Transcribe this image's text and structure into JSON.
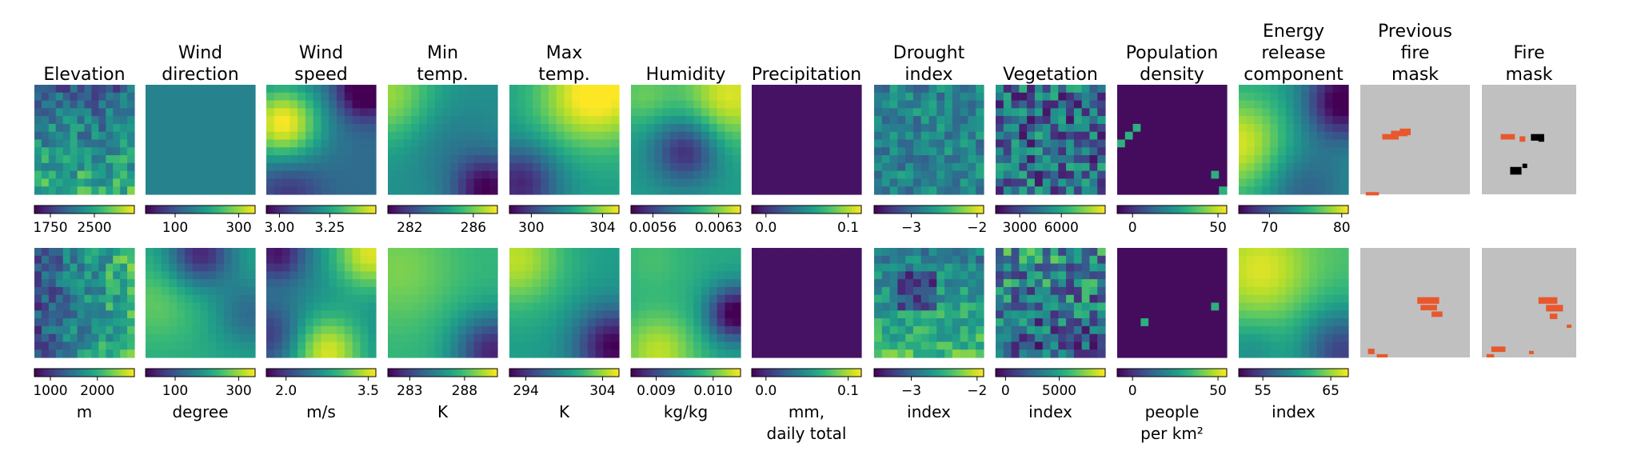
{
  "colors": {
    "viridis_low": "#440154",
    "viridis_mid": "#21918c",
    "viridis_high": "#fde725",
    "mask_background": "#c0c0c0",
    "fire": "#e8582c",
    "no_data": "#000000"
  },
  "columns": [
    {
      "title": [
        "Elevation"
      ],
      "unit": [
        "m"
      ],
      "rows": [
        {
          "ticks": [
            "1750",
            "2500"
          ],
          "palette": "viridis",
          "icon": "terrain-heatmap"
        },
        {
          "ticks": [
            "1000",
            "2000"
          ],
          "palette": "viridis",
          "icon": "terrain-heatmap"
        }
      ]
    },
    {
      "title": [
        "Wind",
        "direction"
      ],
      "unit": [
        "degree"
      ],
      "rows": [
        {
          "ticks": [
            "100",
            "300"
          ],
          "palette": "viridis",
          "icon": "uniform-heatmap"
        },
        {
          "ticks": [
            "100",
            "300"
          ],
          "palette": "viridis",
          "icon": "smooth-heatmap"
        }
      ]
    },
    {
      "title": [
        "Wind",
        "speed"
      ],
      "unit": [
        "m/s"
      ],
      "rows": [
        {
          "ticks": [
            "3.00",
            "3.25"
          ],
          "palette": "viridis",
          "icon": "smooth-heatmap"
        },
        {
          "ticks": [
            "2.0",
            "3.5"
          ],
          "palette": "viridis",
          "icon": "smooth-heatmap"
        }
      ]
    },
    {
      "title": [
        "Min",
        "temp."
      ],
      "unit": [
        "K"
      ],
      "rows": [
        {
          "ticks": [
            "282",
            "286"
          ],
          "palette": "viridis",
          "icon": "smooth-heatmap"
        },
        {
          "ticks": [
            "283",
            "288"
          ],
          "palette": "viridis",
          "icon": "smooth-heatmap"
        }
      ]
    },
    {
      "title": [
        "Max",
        "temp."
      ],
      "unit": [
        "K"
      ],
      "rows": [
        {
          "ticks": [
            "300",
            "304"
          ],
          "palette": "viridis",
          "icon": "smooth-heatmap"
        },
        {
          "ticks": [
            "294",
            "304"
          ],
          "palette": "viridis",
          "icon": "smooth-heatmap"
        }
      ]
    },
    {
      "title": [
        "Humidity"
      ],
      "unit": [
        "kg/kg"
      ],
      "rows": [
        {
          "ticks": [
            "0.0056",
            "0.0063"
          ],
          "palette": "viridis",
          "icon": "smooth-heatmap"
        },
        {
          "ticks": [
            "0.009",
            "0.010"
          ],
          "palette": "viridis",
          "icon": "smooth-heatmap"
        }
      ]
    },
    {
      "title": [
        "Precipitation"
      ],
      "unit": [
        "mm,",
        "daily total"
      ],
      "rows": [
        {
          "ticks": [
            "0.0",
            "0.1"
          ],
          "palette": "viridis",
          "icon": "uniform-heatmap"
        },
        {
          "ticks": [
            "0.0",
            "0.1"
          ],
          "palette": "viridis",
          "icon": "uniform-heatmap"
        }
      ]
    },
    {
      "title": [
        "Drought",
        "index"
      ],
      "unit": [
        "index"
      ],
      "rows": [
        {
          "ticks": [
            "−3",
            "−2"
          ],
          "palette": "viridis",
          "icon": "patchy-heatmap"
        },
        {
          "ticks": [
            "−3",
            "−2"
          ],
          "palette": "viridis",
          "icon": "patchy-heatmap"
        }
      ]
    },
    {
      "title": [
        "Vegetation"
      ],
      "unit": [
        "index"
      ],
      "rows": [
        {
          "ticks": [
            "3000",
            "6000"
          ],
          "palette": "viridis",
          "icon": "noisy-heatmap"
        },
        {
          "ticks": [
            "0",
            "5000"
          ],
          "palette": "viridis",
          "icon": "noisy-heatmap"
        }
      ]
    },
    {
      "title": [
        "Population",
        "density"
      ],
      "unit": [
        "people",
        "per km²"
      ],
      "rows": [
        {
          "ticks": [
            "0",
            "50"
          ],
          "palette": "viridis",
          "icon": "sparse-heatmap"
        },
        {
          "ticks": [
            "0",
            "50"
          ],
          "palette": "viridis",
          "icon": "sparse-heatmap"
        }
      ]
    },
    {
      "title": [
        "Energy",
        "release",
        "component"
      ],
      "unit": [
        "index"
      ],
      "rows": [
        {
          "ticks": [
            "70",
            "80"
          ],
          "palette": "viridis",
          "icon": "smooth-heatmap"
        },
        {
          "ticks": [
            "55",
            "65"
          ],
          "palette": "viridis",
          "icon": "smooth-heatmap"
        }
      ]
    },
    {
      "title": [
        "Previous",
        "fire",
        "mask"
      ],
      "unit": [],
      "rows": [
        {
          "ticks": [],
          "palette": "mask",
          "icon": "fire-mask"
        },
        {
          "ticks": [],
          "palette": "mask",
          "icon": "fire-mask"
        }
      ]
    },
    {
      "title": [
        "Fire",
        "mask"
      ],
      "unit": [],
      "rows": [
        {
          "ticks": [],
          "palette": "mask",
          "icon": "fire-mask"
        },
        {
          "ticks": [],
          "palette": "mask",
          "icon": "fire-mask"
        }
      ]
    }
  ]
}
